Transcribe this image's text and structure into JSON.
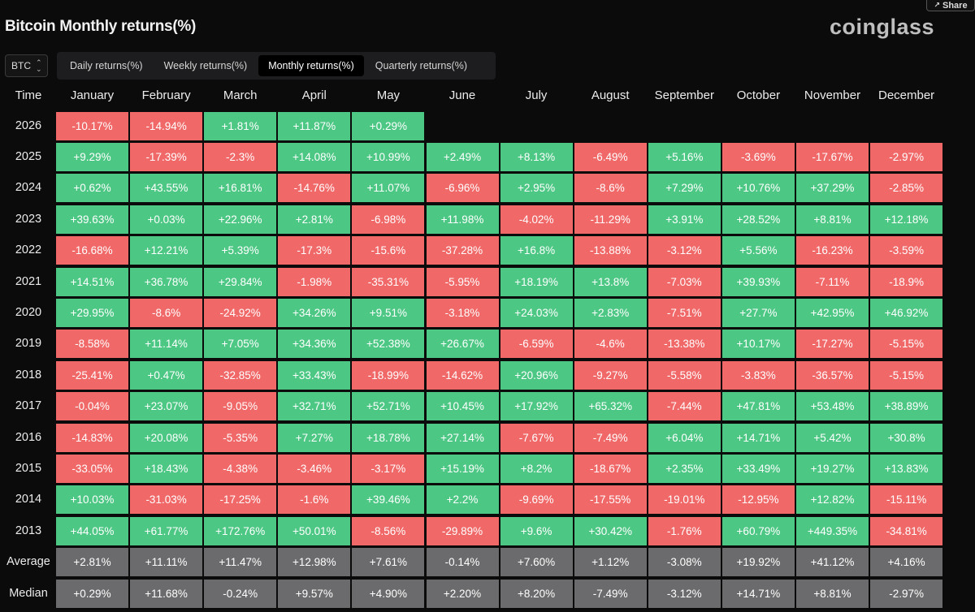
{
  "page": {
    "title": "Bitcoin Monthly returns(%)",
    "logo": "coinglass",
    "share_label": "Share",
    "asset_select": "BTC",
    "tabs": [
      {
        "label": "Daily returns(%)",
        "active": false
      },
      {
        "label": "Weekly returns(%)",
        "active": false
      },
      {
        "label": "Monthly returns(%)",
        "active": true
      },
      {
        "label": "Quarterly returns(%)",
        "active": false
      }
    ]
  },
  "colors": {
    "positive": "#4dc784",
    "negative": "#f06868",
    "summary": "#6b6b6d",
    "background": "#0b0b0c"
  },
  "chart_data": {
    "type": "table",
    "title": "Bitcoin Monthly returns(%)",
    "row_header_label": "Time",
    "columns": [
      "January",
      "February",
      "March",
      "April",
      "May",
      "June",
      "July",
      "August",
      "September",
      "October",
      "November",
      "December"
    ],
    "rows": [
      {
        "label": "2026",
        "values": [
          "-10.17%",
          "-14.94%",
          "+1.81%",
          "+11.87%",
          "+0.29%"
        ]
      },
      {
        "label": "2025",
        "values": [
          "+9.29%",
          "-17.39%",
          "-2.3%",
          "+14.08%",
          "+10.99%",
          "+2.49%",
          "+8.13%",
          "-6.49%",
          "+5.16%",
          "-3.69%",
          "-17.67%",
          "-2.97%"
        ]
      },
      {
        "label": "2024",
        "values": [
          "+0.62%",
          "+43.55%",
          "+16.81%",
          "-14.76%",
          "+11.07%",
          "-6.96%",
          "+2.95%",
          "-8.6%",
          "+7.29%",
          "+10.76%",
          "+37.29%",
          "-2.85%"
        ]
      },
      {
        "label": "2023",
        "values": [
          "+39.63%",
          "+0.03%",
          "+22.96%",
          "+2.81%",
          "-6.98%",
          "+11.98%",
          "-4.02%",
          "-11.29%",
          "+3.91%",
          "+28.52%",
          "+8.81%",
          "+12.18%"
        ]
      },
      {
        "label": "2022",
        "values": [
          "-16.68%",
          "+12.21%",
          "+5.39%",
          "-17.3%",
          "-15.6%",
          "-37.28%",
          "+16.8%",
          "-13.88%",
          "-3.12%",
          "+5.56%",
          "-16.23%",
          "-3.59%"
        ]
      },
      {
        "label": "2021",
        "values": [
          "+14.51%",
          "+36.78%",
          "+29.84%",
          "-1.98%",
          "-35.31%",
          "-5.95%",
          "+18.19%",
          "+13.8%",
          "-7.03%",
          "+39.93%",
          "-7.11%",
          "-18.9%"
        ]
      },
      {
        "label": "2020",
        "values": [
          "+29.95%",
          "-8.6%",
          "-24.92%",
          "+34.26%",
          "+9.51%",
          "-3.18%",
          "+24.03%",
          "+2.83%",
          "-7.51%",
          "+27.7%",
          "+42.95%",
          "+46.92%"
        ]
      },
      {
        "label": "2019",
        "values": [
          "-8.58%",
          "+11.14%",
          "+7.05%",
          "+34.36%",
          "+52.38%",
          "+26.67%",
          "-6.59%",
          "-4.6%",
          "-13.38%",
          "+10.17%",
          "-17.27%",
          "-5.15%"
        ]
      },
      {
        "label": "2018",
        "values": [
          "-25.41%",
          "+0.47%",
          "-32.85%",
          "+33.43%",
          "-18.99%",
          "-14.62%",
          "+20.96%",
          "-9.27%",
          "-5.58%",
          "-3.83%",
          "-36.57%",
          "-5.15%"
        ]
      },
      {
        "label": "2017",
        "values": [
          "-0.04%",
          "+23.07%",
          "-9.05%",
          "+32.71%",
          "+52.71%",
          "+10.45%",
          "+17.92%",
          "+65.32%",
          "-7.44%",
          "+47.81%",
          "+53.48%",
          "+38.89%"
        ]
      },
      {
        "label": "2016",
        "values": [
          "-14.83%",
          "+20.08%",
          "-5.35%",
          "+7.27%",
          "+18.78%",
          "+27.14%",
          "-7.67%",
          "-7.49%",
          "+6.04%",
          "+14.71%",
          "+5.42%",
          "+30.8%"
        ]
      },
      {
        "label": "2015",
        "values": [
          "-33.05%",
          "+18.43%",
          "-4.38%",
          "-3.46%",
          "-3.17%",
          "+15.19%",
          "+8.2%",
          "-18.67%",
          "+2.35%",
          "+33.49%",
          "+19.27%",
          "+13.83%"
        ]
      },
      {
        "label": "2014",
        "values": [
          "+10.03%",
          "-31.03%",
          "-17.25%",
          "-1.6%",
          "+39.46%",
          "+2.2%",
          "-9.69%",
          "-17.55%",
          "-19.01%",
          "-12.95%",
          "+12.82%",
          "-15.11%"
        ]
      },
      {
        "label": "2013",
        "values": [
          "+44.05%",
          "+61.77%",
          "+172.76%",
          "+50.01%",
          "-8.56%",
          "-29.89%",
          "+9.6%",
          "+30.42%",
          "-1.76%",
          "+60.79%",
          "+449.35%",
          "-34.81%"
        ]
      }
    ],
    "summary_rows": [
      {
        "label": "Average",
        "values": [
          "+2.81%",
          "+11.11%",
          "+11.47%",
          "+12.98%",
          "+7.61%",
          "-0.14%",
          "+7.60%",
          "+1.12%",
          "-3.08%",
          "+19.92%",
          "+41.12%",
          "+4.16%"
        ]
      },
      {
        "label": "Median",
        "values": [
          "+0.29%",
          "+11.68%",
          "-0.24%",
          "+9.57%",
          "+4.90%",
          "+2.20%",
          "+8.20%",
          "-7.49%",
          "-3.12%",
          "+14.71%",
          "+8.81%",
          "-2.97%"
        ]
      }
    ]
  }
}
